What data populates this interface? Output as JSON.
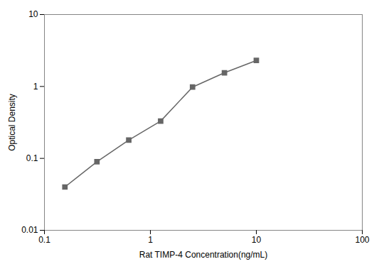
{
  "chart_data": {
    "type": "line",
    "x": [
      0.156,
      0.313,
      0.625,
      1.25,
      2.5,
      5.0,
      10.0
    ],
    "values": [
      0.04,
      0.09,
      0.18,
      0.33,
      0.98,
      1.55,
      2.3
    ],
    "xlabel": "Rat TIMP-4 Concentration(ng/mL)",
    "ylabel": "Optical Density",
    "xlim": [
      0.1,
      100
    ],
    "ylim": [
      0.01,
      10
    ],
    "xticks": [
      0.1,
      1,
      10,
      100
    ],
    "yticks": [
      0.01,
      0.1,
      1,
      10
    ],
    "log": true,
    "grid": false,
    "color": "#666666",
    "marker": "square"
  }
}
